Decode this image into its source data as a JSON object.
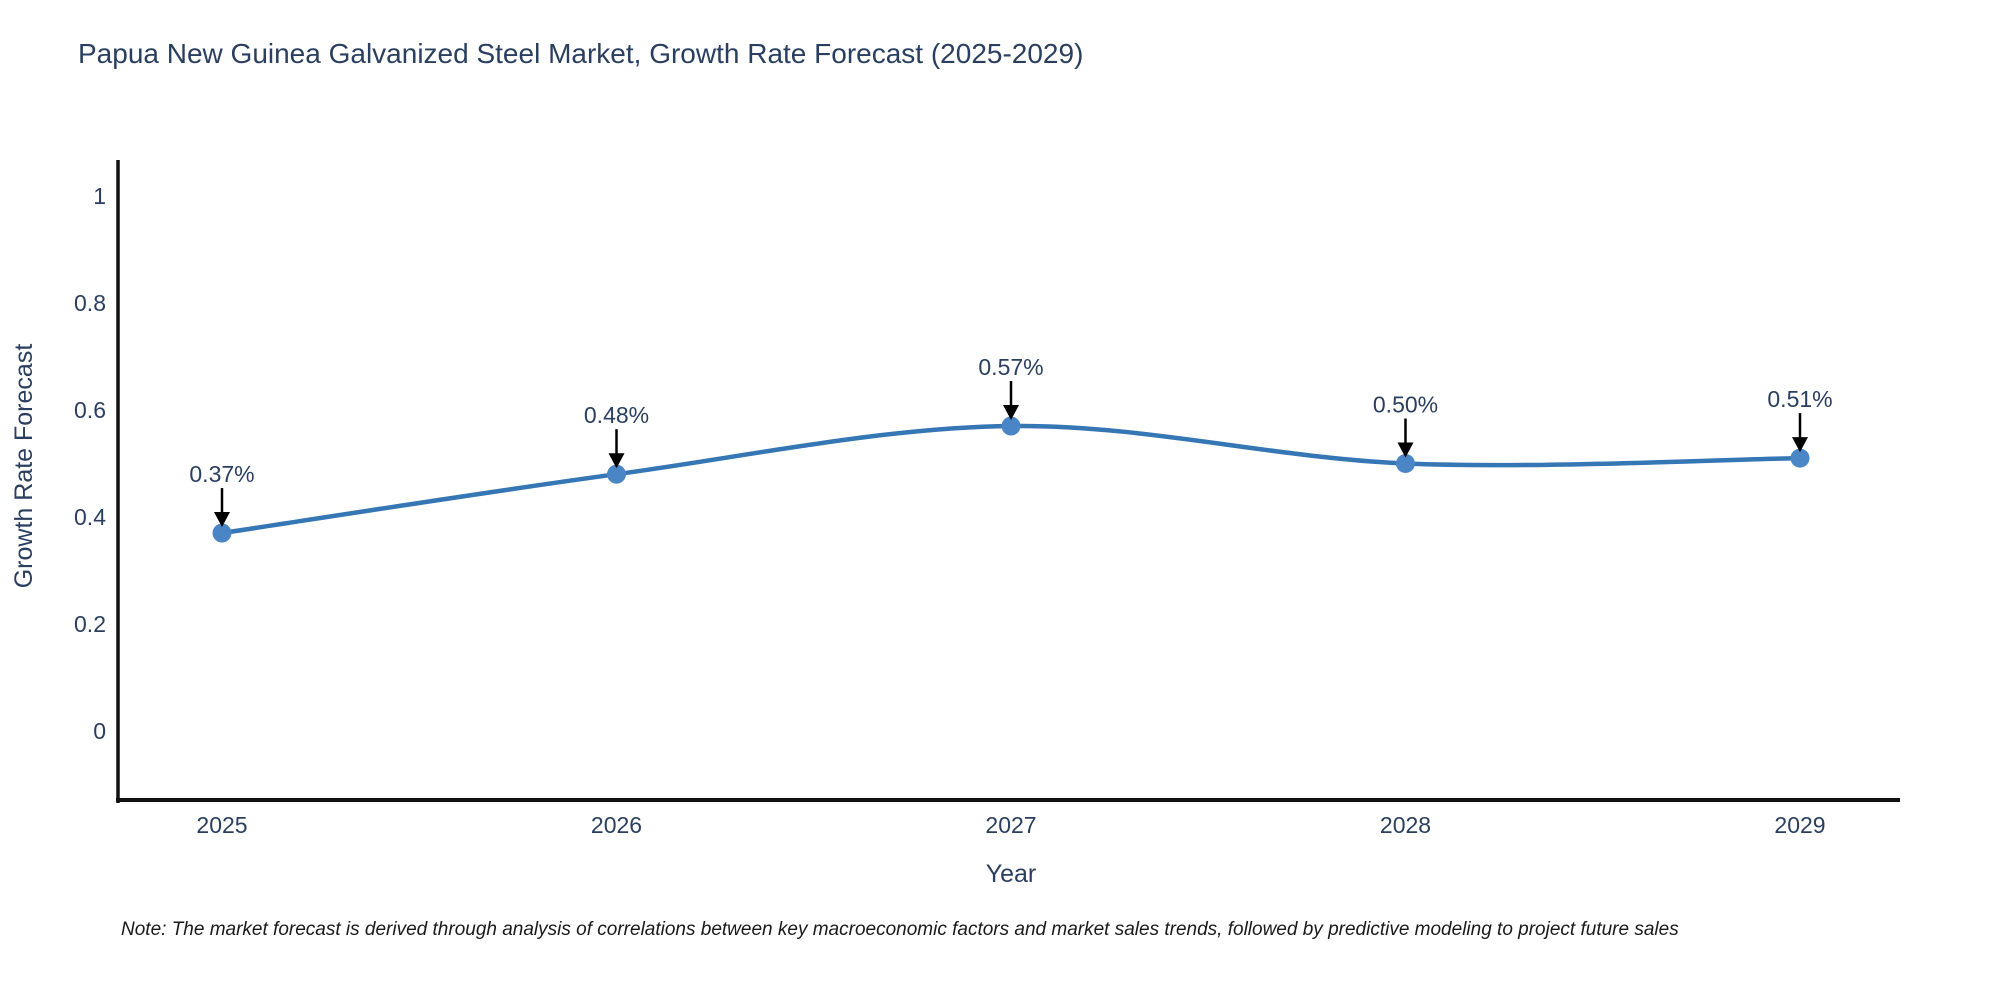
{
  "chart_data": {
    "type": "line",
    "title": "Papua New Guinea Galvanized Steel Market, Growth Rate Forecast (2025-2029)",
    "xlabel": "Year",
    "ylabel": "Growth Rate Forecast",
    "categories": [
      "2025",
      "2026",
      "2027",
      "2028",
      "2029"
    ],
    "series": [
      {
        "name": "Growth Rate Forecast",
        "values": [
          0.37,
          0.48,
          0.57,
          0.5,
          0.51
        ]
      }
    ],
    "point_labels": [
      "0.37%",
      "0.48%",
      "0.57%",
      "0.50%",
      "0.51%"
    ],
    "yticks": [
      0,
      0.2,
      0.4,
      0.6,
      0.8,
      1
    ],
    "ytick_labels": [
      "0",
      "0.2",
      "0.4",
      "0.6",
      "0.8",
      "1"
    ],
    "ylim": [
      -0.13,
      1.07
    ],
    "line_shape": "spline",
    "grid": false,
    "legend_position": "none",
    "colors": {
      "line": "#3576b5",
      "marker": "#4a86c5",
      "axis": "#111111",
      "text": "#2a3f5f",
      "annotation_arrow": "#000000"
    },
    "note": "Note: The market forecast is derived through analysis of correlations between key macroeconomic factors and market sales trends, followed by predictive modeling to project future sales"
  }
}
